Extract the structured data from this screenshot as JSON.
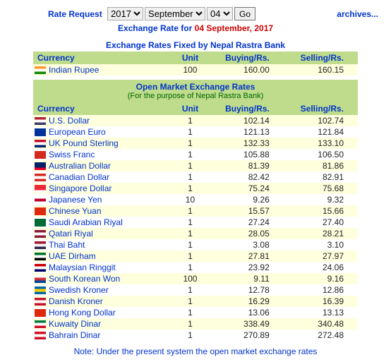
{
  "top": {
    "rate_request": "Rate Request",
    "year": "2017",
    "month": "September",
    "day": "04",
    "go": "Go",
    "archives": "archives..."
  },
  "subhead": {
    "prefix": "Exchange Rate for ",
    "date": "04 September, 2017"
  },
  "fixed": {
    "title": "Exchange Rates Fixed by Nepal Rastra Bank",
    "headers": {
      "currency": "Currency",
      "unit": "Unit",
      "buying": "Buying/Rs.",
      "selling": "Selling/Rs."
    },
    "row": {
      "name": "Indian Rupee",
      "unit": "100",
      "buying": "160.00",
      "selling": "160.15",
      "flag_colors": [
        "#ff9933",
        "#ffffff",
        "#138808"
      ]
    }
  },
  "open": {
    "title1": "Open Market Exchange Rates",
    "title2": "(For the purpose of Nepal Rastra Bank)",
    "headers": {
      "currency": "Currency",
      "unit": "Unit",
      "buying": "Buying/Rs.",
      "selling": "Selling/Rs."
    },
    "rows": [
      {
        "name": "U.S. Dollar",
        "unit": "1",
        "buying": "102.14",
        "selling": "102.74",
        "flag_colors": [
          "#b22234",
          "#ffffff",
          "#3c3b6e"
        ]
      },
      {
        "name": "European Euro",
        "unit": "1",
        "buying": "121.13",
        "selling": "121.84",
        "flag_colors": [
          "#003399",
          "#003399",
          "#003399"
        ]
      },
      {
        "name": "UK Pound Sterling",
        "unit": "1",
        "buying": "132.33",
        "selling": "133.10",
        "flag_colors": [
          "#c8102e",
          "#ffffff",
          "#012169"
        ]
      },
      {
        "name": "Swiss Franc",
        "unit": "1",
        "buying": "105.88",
        "selling": "106.50",
        "flag_colors": [
          "#d52b1e",
          "#d52b1e",
          "#d52b1e"
        ]
      },
      {
        "name": "Australian Dollar",
        "unit": "1",
        "buying": "81.39",
        "selling": "81.86",
        "flag_colors": [
          "#012169",
          "#012169",
          "#e4002b"
        ]
      },
      {
        "name": "Canadian Dollar",
        "unit": "1",
        "buying": "82.42",
        "selling": "82.91",
        "flag_colors": [
          "#d52b1e",
          "#ffffff",
          "#d52b1e"
        ]
      },
      {
        "name": "Singapore Dollar",
        "unit": "1",
        "buying": "75.24",
        "selling": "75.68",
        "flag_colors": [
          "#ed2939",
          "#ed2939",
          "#ffffff"
        ]
      },
      {
        "name": "Japanese Yen",
        "unit": "10",
        "buying": "9.26",
        "selling": "9.32",
        "flag_colors": [
          "#ffffff",
          "#bc002d",
          "#ffffff"
        ]
      },
      {
        "name": "Chinese Yuan",
        "unit": "1",
        "buying": "15.57",
        "selling": "15.66",
        "flag_colors": [
          "#de2910",
          "#de2910",
          "#de2910"
        ]
      },
      {
        "name": "Saudi Arabian Riyal",
        "unit": "1",
        "buying": "27.24",
        "selling": "27.40",
        "flag_colors": [
          "#006c35",
          "#006c35",
          "#006c35"
        ]
      },
      {
        "name": "Qatari Riyal",
        "unit": "1",
        "buying": "28.05",
        "selling": "28.21",
        "flag_colors": [
          "#8d1b3d",
          "#ffffff",
          "#8d1b3d"
        ]
      },
      {
        "name": "Thai Baht",
        "unit": "1",
        "buying": "3.08",
        "selling": "3.10",
        "flag_colors": [
          "#a51931",
          "#f4f5f8",
          "#2d2a4a"
        ]
      },
      {
        "name": "UAE Dirham",
        "unit": "1",
        "buying": "27.81",
        "selling": "27.97",
        "flag_colors": [
          "#00732f",
          "#ffffff",
          "#000000"
        ]
      },
      {
        "name": "Malaysian Ringgit",
        "unit": "1",
        "buying": "23.92",
        "selling": "24.06",
        "flag_colors": [
          "#cc0001",
          "#ffffff",
          "#010066"
        ]
      },
      {
        "name": "South Korean Won",
        "unit": "100",
        "buying": "9.11",
        "selling": "9.16",
        "flag_colors": [
          "#ffffff",
          "#cd2e3a",
          "#0047a0"
        ]
      },
      {
        "name": "Swedish Kroner",
        "unit": "1",
        "buying": "12.78",
        "selling": "12.86",
        "flag_colors": [
          "#006aa7",
          "#fecc00",
          "#006aa7"
        ]
      },
      {
        "name": "Danish Kroner",
        "unit": "1",
        "buying": "16.29",
        "selling": "16.39",
        "flag_colors": [
          "#c8102e",
          "#ffffff",
          "#c8102e"
        ]
      },
      {
        "name": "Hong Kong Dollar",
        "unit": "1",
        "buying": "13.06",
        "selling": "13.13",
        "flag_colors": [
          "#de2910",
          "#de2910",
          "#de2910"
        ]
      },
      {
        "name": "Kuwaity Dinar",
        "unit": "1",
        "buying": "338.49",
        "selling": "340.48",
        "flag_colors": [
          "#007a3d",
          "#ffffff",
          "#ce1126"
        ]
      },
      {
        "name": "Bahrain Dinar",
        "unit": "1",
        "buying": "270.89",
        "selling": "272.48",
        "flag_colors": [
          "#ce1126",
          "#ffffff",
          "#ce1126"
        ]
      }
    ]
  },
  "note": "Note: Under the present system the open market exchange rates"
}
